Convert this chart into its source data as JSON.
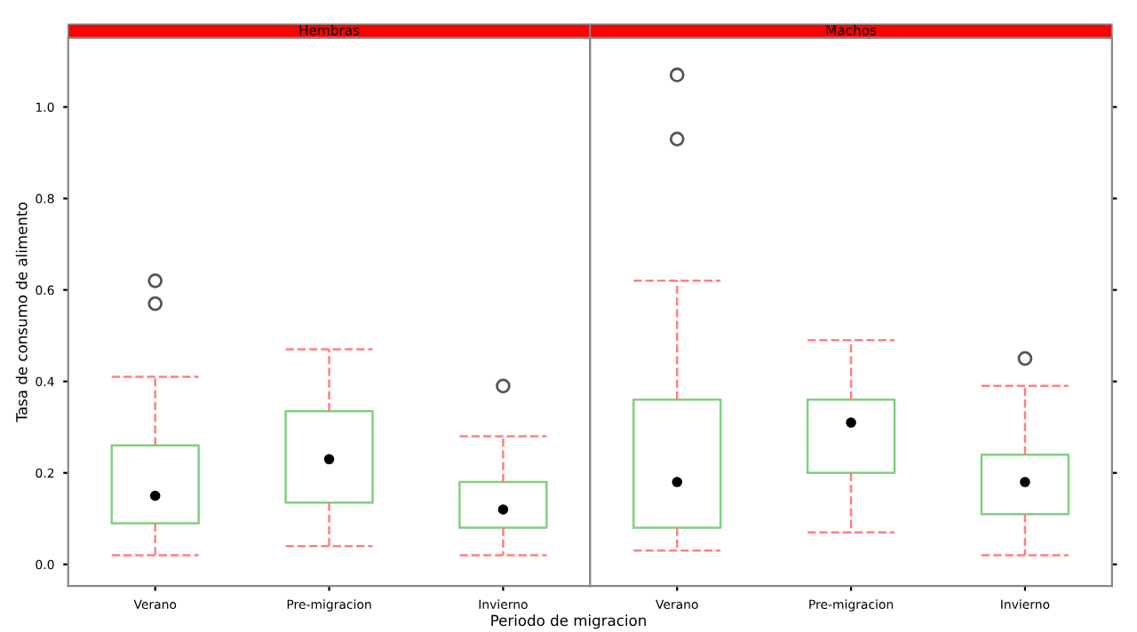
{
  "chart_data": [
    {
      "type": "box",
      "title": "Hembras",
      "ylabel": "Tasa de consumo de alimento",
      "xlabel": "Periodo de migracion",
      "categories": [
        "Verano",
        "Pre-migracion",
        "Invierno"
      ],
      "ylim": [
        -0.047,
        1.151
      ],
      "yticks": [
        {
          "value": 0,
          "label": "0.0"
        },
        0.2,
        0.4,
        0.6,
        0.8,
        {
          "value": 1,
          "label": "1.0"
        }
      ],
      "color": "#80d080",
      "grid": false,
      "boxes": [
        {
          "low": 0.02,
          "q1": 0.09,
          "median": 0.15,
          "q3": 0.26,
          "high": 0.41,
          "outliers": [
            0.57,
            0.62
          ]
        },
        {
          "low": 0.04,
          "q1": 0.135,
          "median": 0.23,
          "q3": 0.335,
          "high": 0.47
        },
        {
          "low": 0.02,
          "q1": 0.08,
          "median": 0.12,
          "q3": 0.18,
          "high": 0.28,
          "outliers": [
            0.39
          ]
        }
      ]
    },
    {
      "type": "box",
      "title": "Machos",
      "categories": [
        "Verano",
        "Pre-migracion",
        "Invierno"
      ],
      "ylim": [
        -0.047,
        1.151
      ],
      "yticks": [
        {
          "value": 0,
          "label": null
        },
        {
          "value": 0.2,
          "label": null
        },
        {
          "value": 0.4,
          "label": null
        },
        {
          "value": 0.6,
          "label": null
        },
        {
          "value": 0.8,
          "label": null
        },
        {
          "value": 1,
          "label": null
        }
      ],
      "tick_labels": "x",
      "color": "#80d080",
      "grid": false,
      "boxes": [
        {
          "low": 0.03,
          "q1": 0.08,
          "median": 0.18,
          "q3": 0.36,
          "high": 0.62,
          "outliers": [
            0.93,
            1.07
          ]
        },
        {
          "low": 0.07,
          "q1": 0.2,
          "median": 0.31,
          "q3": 0.36,
          "high": 0.49
        },
        {
          "low": 0.02,
          "q1": 0.11,
          "median": 0.18,
          "q3": 0.24,
          "high": 0.39,
          "outliers": [
            0.45
          ]
        }
      ]
    }
  ]
}
